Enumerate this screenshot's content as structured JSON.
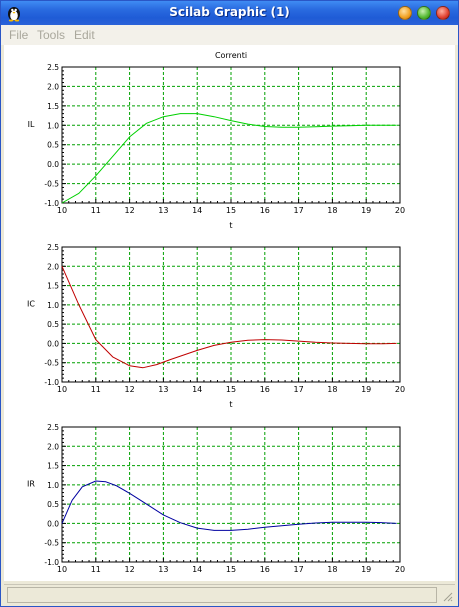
{
  "window": {
    "title": "Scilab Graphic (1)"
  },
  "menu": {
    "file": "File",
    "tools": "Tools",
    "edit": "Edit"
  },
  "icons": {
    "app": "penguin-icon",
    "minimize": "minimize-icon",
    "maximize": "maximize-icon",
    "close": "close-icon"
  },
  "colors": {
    "grid": "#00a000",
    "il": "#00d000",
    "ic": "#c00000",
    "ir": "#0000a0"
  },
  "chart_data": [
    {
      "type": "line",
      "title": "Correnti",
      "xlabel": "t",
      "ylabel": "IL",
      "xlim": [
        10,
        20
      ],
      "ylim": [
        -1.0,
        2.5
      ],
      "x_ticks": [
        "10",
        "11",
        "12",
        "13",
        "14",
        "15",
        "16",
        "17",
        "18",
        "19",
        "20"
      ],
      "y_ticks": [
        "-1.0",
        "-0.5",
        "0.0",
        "0.5",
        "1.0",
        "1.5",
        "2.0",
        "2.5"
      ],
      "grid": true,
      "series": [
        {
          "color": "#00d000",
          "x": [
            10,
            10.5,
            11,
            11.5,
            12,
            12.5,
            13,
            13.5,
            14,
            14.5,
            15,
            15.5,
            16,
            16.5,
            17,
            17.5,
            18,
            18.5,
            19,
            19.5,
            19.9
          ],
          "y": [
            -1.0,
            -0.75,
            -0.3,
            0.2,
            0.7,
            1.05,
            1.22,
            1.3,
            1.3,
            1.22,
            1.12,
            1.03,
            0.97,
            0.95,
            0.95,
            0.96,
            0.98,
            0.99,
            1.0,
            1.0,
            1.0
          ]
        }
      ]
    },
    {
      "type": "line",
      "title": "",
      "xlabel": "t",
      "ylabel": "IC",
      "xlim": [
        10,
        20
      ],
      "ylim": [
        -1.0,
        2.5
      ],
      "x_ticks": [
        "10",
        "11",
        "12",
        "13",
        "14",
        "15",
        "16",
        "17",
        "18",
        "19",
        "20"
      ],
      "y_ticks": [
        "-1.0",
        "-0.5",
        "0.0",
        "0.5",
        "1.0",
        "1.5",
        "2.0",
        "2.5"
      ],
      "grid": true,
      "series": [
        {
          "color": "#c00000",
          "x": [
            10,
            10.5,
            11,
            11.5,
            12,
            12.4,
            12.8,
            13.2,
            13.6,
            14,
            14.5,
            15,
            15.5,
            16,
            16.5,
            17,
            17.5,
            18,
            18.5,
            19,
            19.5,
            19.9
          ],
          "y": [
            2.0,
            1.0,
            0.1,
            -0.35,
            -0.58,
            -0.63,
            -0.55,
            -0.42,
            -0.3,
            -0.18,
            -0.05,
            0.03,
            0.08,
            0.1,
            0.09,
            0.06,
            0.03,
            0.01,
            0.0,
            -0.01,
            -0.01,
            0.0
          ]
        }
      ]
    },
    {
      "type": "line",
      "title": "",
      "xlabel": "t",
      "ylabel": "IR",
      "xlim": [
        10,
        20
      ],
      "ylim": [
        -1.0,
        2.5
      ],
      "x_ticks": [
        "10",
        "11",
        "12",
        "13",
        "14",
        "15",
        "16",
        "17",
        "18",
        "19",
        "20"
      ],
      "y_ticks": [
        "-1.0",
        "-0.5",
        "0.0",
        "0.5",
        "1.0",
        "1.5",
        "2.0",
        "2.5"
      ],
      "grid": true,
      "series": [
        {
          "color": "#0000a0",
          "x": [
            10,
            10.3,
            10.6,
            11,
            11.3,
            11.6,
            12,
            12.5,
            13,
            13.5,
            14,
            14.5,
            15,
            15.5,
            16,
            16.5,
            17,
            17.5,
            18,
            18.5,
            19,
            19.5,
            19.9
          ],
          "y": [
            0.0,
            0.6,
            0.95,
            1.1,
            1.08,
            0.98,
            0.78,
            0.5,
            0.22,
            0.02,
            -0.12,
            -0.18,
            -0.18,
            -0.15,
            -0.1,
            -0.06,
            -0.02,
            0.01,
            0.03,
            0.03,
            0.03,
            0.02,
            0.0
          ]
        }
      ]
    }
  ]
}
